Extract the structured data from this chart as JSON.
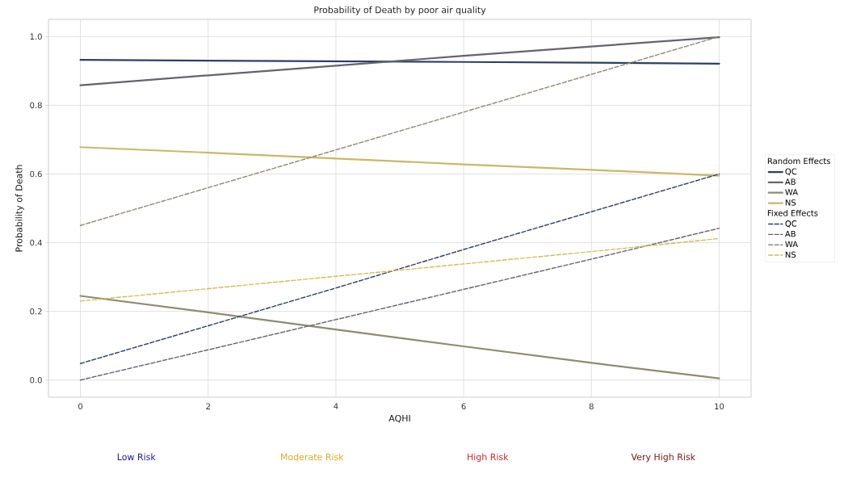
{
  "chart_data": {
    "type": "line",
    "title": "Probability of Death by poor air quality",
    "xlabel": "AQHI",
    "ylabel": "Probability of Death",
    "xlim": [
      -0.5,
      10.5
    ],
    "ylim": [
      -0.05,
      1.05
    ],
    "xticks": [
      0,
      2,
      4,
      6,
      8,
      10
    ],
    "yticks": [
      {
        "value": 0,
        "label": "0.0"
      },
      {
        "value": 0.2,
        "label": "0.2"
      },
      {
        "value": 0.4,
        "label": "0.4"
      },
      {
        "value": 0.6,
        "label": "0.6"
      },
      {
        "value": 0.8,
        "label": "0.8"
      },
      {
        "value": 1.0,
        "label": "1.0"
      }
    ],
    "grid": true,
    "legend": "right",
    "marker": "none",
    "annotations": [
      "Random Effects",
      "Fixed Effects",
      "Low Risk",
      "Moderate Risk",
      "High Risk",
      "Very High Risk"
    ],
    "series": [
      {
        "name": "QC",
        "color": "#2e3f66",
        "line_style": "solid",
        "x": [
          0,
          2,
          4,
          6,
          8,
          10
        ],
        "values": [
          0.932,
          0.93,
          0.928,
          0.926,
          0.924,
          0.921
        ]
      },
      {
        "name": "AB",
        "color": "#63646f",
        "line_style": "solid",
        "x": [
          0,
          2,
          4,
          6,
          8,
          10
        ],
        "values": [
          0.858,
          0.887,
          0.915,
          0.944,
          0.971,
          0.998
        ]
      },
      {
        "name": "WA",
        "color": "#8e8b72",
        "line_style": "solid",
        "x": [
          0,
          2,
          4,
          6,
          8,
          10
        ],
        "values": [
          0.245,
          0.197,
          0.147,
          0.098,
          0.05,
          0.005
        ]
      },
      {
        "name": "NS",
        "color": "#c9b868",
        "line_style": "solid",
        "x": [
          0,
          2,
          4,
          6,
          8,
          10
        ],
        "values": [
          0.678,
          0.662,
          0.645,
          0.628,
          0.612,
          0.595
        ]
      },
      {
        "name": "QC",
        "color": "#2e3f66",
        "line_style": "dashed",
        "x": [
          0,
          2,
          4,
          6,
          8,
          10
        ],
        "values": [
          0.048,
          0.158,
          0.268,
          0.38,
          0.49,
          0.6
        ]
      },
      {
        "name": "AB",
        "color": "#63646f",
        "line_style": "dashed",
        "x": [
          0,
          2,
          4,
          6,
          8,
          10
        ],
        "values": [
          0.0,
          0.088,
          0.176,
          0.264,
          0.352,
          0.442
        ]
      },
      {
        "name": "WA",
        "color": "#8e8b72",
        "line_style": "dashed",
        "x": [
          0,
          2,
          4,
          6,
          8,
          10
        ],
        "values": [
          0.45,
          0.56,
          0.67,
          0.78,
          0.89,
          1.0
        ]
      },
      {
        "name": "NS",
        "color": "#d4bc5a",
        "line_style": "dashed",
        "x": [
          0,
          2,
          4,
          6,
          8,
          10
        ],
        "values": [
          0.23,
          0.266,
          0.302,
          0.338,
          0.374,
          0.412
        ]
      }
    ]
  }
}
